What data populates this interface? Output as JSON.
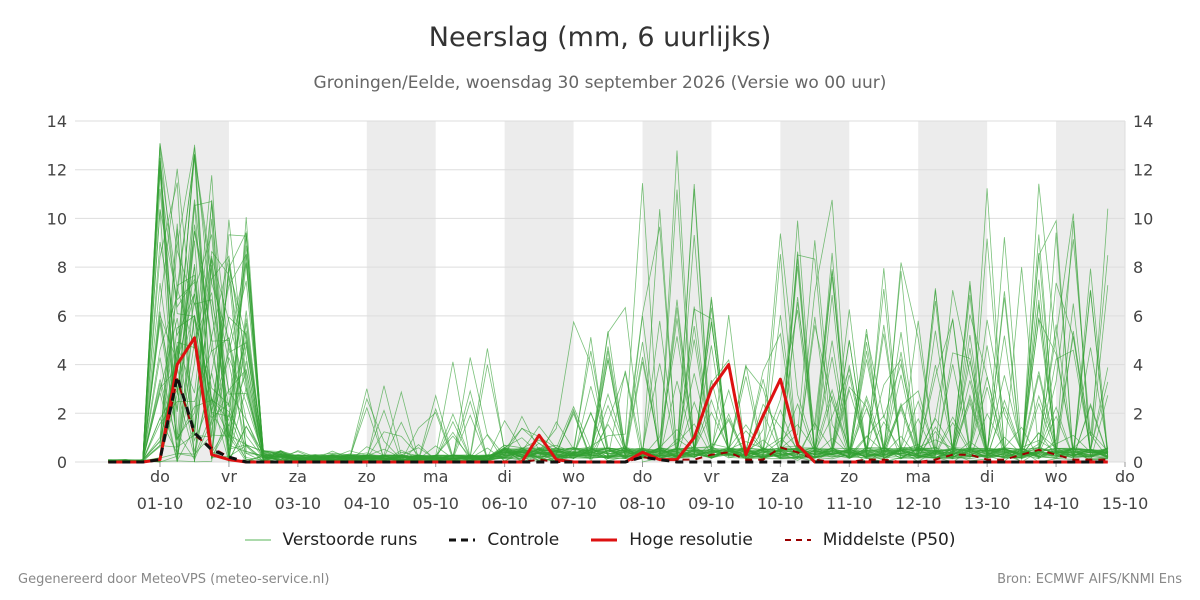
{
  "header": {
    "title": "Neerslag (mm, 6 uurlijks)",
    "subtitle": "Groningen/Eelde, woensdag 30 september 2026 (Versie wo 00 uur)"
  },
  "footer": {
    "left": "Gegenereerd door MeteoVPS (meteo-service.nl)",
    "right": "Bron: ECMWF AIFS/KNMI Ens"
  },
  "legend": [
    {
      "label": "Verstoorde runs",
      "color": "#5ab45a",
      "style": "thin-solid"
    },
    {
      "label": "Controle",
      "color": "#111111",
      "style": "dashed"
    },
    {
      "label": "Hoge resolutie",
      "color": "#dd1111",
      "style": "thick-solid"
    },
    {
      "label": "Middelste (P50)",
      "color": "#9b0000",
      "style": "dashed"
    }
  ],
  "chart_data": {
    "type": "line",
    "title": "Neerslag (mm, 6 uurlijks)",
    "subtitle": "Groningen/Eelde, woensdag 30 september 2026 (Versie wo 00 uur)",
    "y_unit": "mm",
    "ylim": [
      0,
      14
    ],
    "yticks": [
      0,
      2,
      4,
      6,
      8,
      10,
      12,
      14
    ],
    "x_start": "30-09 06:00",
    "x_end": "15-10 00:00",
    "x_step_hours": 6,
    "xticks": [
      {
        "day": "do",
        "date": "01-10"
      },
      {
        "day": "vr",
        "date": "02-10"
      },
      {
        "day": "za",
        "date": "03-10"
      },
      {
        "day": "zo",
        "date": "04-10"
      },
      {
        "day": "ma",
        "date": "05-10"
      },
      {
        "day": "di",
        "date": "06-10"
      },
      {
        "day": "wo",
        "date": "07-10"
      },
      {
        "day": "do",
        "date": "08-10"
      },
      {
        "day": "vr",
        "date": "09-10"
      },
      {
        "day": "za",
        "date": "10-10"
      },
      {
        "day": "zo",
        "date": "11-10"
      },
      {
        "day": "ma",
        "date": "12-10"
      },
      {
        "day": "di",
        "date": "13-10"
      },
      {
        "day": "wo",
        "date": "14-10"
      },
      {
        "day": "do",
        "date": "15-10"
      }
    ],
    "shaded_days": [
      "01-10",
      "04-10",
      "06-10",
      "08-10",
      "10-10",
      "12-10",
      "14-10"
    ],
    "grid": true,
    "legend_position": "bottom",
    "series": [
      {
        "name": "Hoge resolutie",
        "color": "#dd1111",
        "values": [
          0,
          0,
          0,
          0.1,
          4.0,
          5.1,
          0.3,
          0.1,
          0,
          0,
          0,
          0,
          0,
          0,
          0,
          0,
          0,
          0,
          0,
          0,
          0,
          0,
          0,
          0,
          0,
          1.1,
          0.1,
          0,
          0,
          0,
          0,
          0.4,
          0.1,
          0.1,
          1.0,
          3.0,
          4.0,
          0.3,
          1.9,
          3.4,
          0.7,
          0,
          0,
          0,
          0,
          0,
          0,
          0,
          0,
          0,
          0,
          0,
          0,
          0,
          0,
          0,
          0,
          0,
          0,
          0,
          0,
          0,
          0,
          0,
          0,
          0,
          0,
          0,
          0,
          0,
          0,
          0,
          0,
          0,
          0,
          0,
          0,
          0,
          0,
          0,
          0,
          0,
          0,
          0,
          0,
          0,
          0,
          0,
          0,
          0,
          0,
          0,
          0,
          0,
          0,
          0,
          0,
          0,
          0,
          0,
          0,
          0,
          0,
          0,
          0,
          0
        ]
      },
      {
        "name": "Controle",
        "color": "#111111",
        "values": [
          0,
          0,
          0,
          0.1,
          3.5,
          1.2,
          0.5,
          0.2,
          0,
          0,
          0,
          0,
          0,
          0,
          0,
          0,
          0,
          0,
          0,
          0,
          0,
          0,
          0,
          0,
          0,
          0,
          0,
          0,
          0,
          0,
          0,
          0.2,
          0.1,
          0,
          0,
          0,
          0,
          0,
          0,
          0,
          0,
          0,
          0,
          0,
          0,
          0,
          0,
          0,
          0,
          0,
          0,
          0,
          0,
          0,
          0,
          0,
          0,
          0,
          0,
          0,
          0,
          0,
          0,
          0,
          0,
          0,
          0,
          0,
          0,
          0,
          0,
          0,
          0,
          0,
          0,
          0,
          0,
          0,
          0,
          0,
          0,
          0,
          0,
          0,
          0,
          0,
          0,
          0,
          0,
          0,
          0,
          0,
          0,
          0,
          0,
          0,
          0,
          0,
          0,
          0,
          0,
          0,
          0,
          0,
          0,
          0
        ]
      },
      {
        "name": "Middelste (P50)",
        "color": "#9b0000",
        "values": [
          0,
          0,
          0,
          0.1,
          3.4,
          1.1,
          0.6,
          0.2,
          0,
          0,
          0,
          0,
          0,
          0,
          0,
          0,
          0,
          0,
          0,
          0,
          0,
          0,
          0,
          0,
          0,
          0.1,
          0,
          0,
          0,
          0,
          0,
          0.2,
          0.1,
          0.1,
          0.1,
          0.3,
          0.4,
          0.1,
          0.1,
          0.6,
          0.4,
          0.1,
          0,
          0,
          0.1,
          0.1,
          0,
          0,
          0.1,
          0.3,
          0.3,
          0.1,
          0.1,
          0.3,
          0.5,
          0.3,
          0.1,
          0.1,
          0.1,
          0.1,
          0,
          0.1,
          0,
          0,
          0.2,
          0.3,
          0.2,
          0,
          0,
          0,
          0,
          0,
          0,
          0,
          0,
          0,
          0,
          0,
          0,
          0,
          0,
          0,
          0,
          0,
          0,
          0,
          0,
          0,
          0,
          0,
          0,
          0,
          0,
          0,
          0,
          0,
          0,
          0,
          0,
          0,
          0,
          0,
          0,
          0,
          0,
          0
        ]
      }
    ],
    "ensemble": {
      "name": "Verstoorde runs",
      "color": "#33a033",
      "members": 50,
      "peaks": [
        {
          "date": "01-10",
          "max": 13.2
        },
        {
          "date": "02-10",
          "max": 10.2
        },
        {
          "date": "03-10",
          "max": 0.5
        },
        {
          "date": "04-10",
          "max": 3.4
        },
        {
          "date": "05-10",
          "max": 4.8
        },
        {
          "date": "06-10",
          "max": 1.9
        },
        {
          "date": "07-10",
          "max": 6.4
        },
        {
          "date": "08-10",
          "max": 12.9
        },
        {
          "date": "09-10",
          "max": 7.5
        },
        {
          "date": "10-10",
          "max": 11.4
        },
        {
          "date": "11-10",
          "max": 8.2
        },
        {
          "date": "12-10",
          "max": 7.6
        },
        {
          "date": "13-10",
          "max": 12.0
        },
        {
          "date": "14-10",
          "max": 10.7
        },
        {
          "date": "15-10",
          "max": 12.0
        }
      ]
    }
  }
}
